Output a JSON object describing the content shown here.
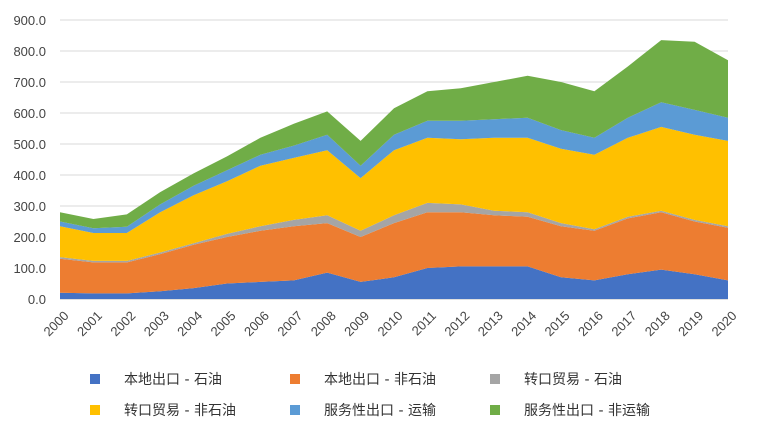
{
  "chart_data": {
    "type": "area",
    "stacked": true,
    "title": "",
    "xlabel": "",
    "ylabel": "",
    "x": [
      "2000",
      "2001",
      "2002",
      "2003",
      "2004",
      "2005",
      "2006",
      "2007",
      "2008",
      "2009",
      "2010",
      "2011",
      "2012",
      "2013",
      "2014",
      "2015",
      "2016",
      "2017",
      "2018",
      "2019",
      "2020"
    ],
    "ylim": [
      0,
      900
    ],
    "yticks": [
      "0.0",
      "100.0",
      "200.0",
      "300.0",
      "400.0",
      "500.0",
      "600.0",
      "700.0",
      "800.0",
      "900.0"
    ],
    "grid": true,
    "legend_position": "bottom",
    "series": [
      {
        "name": "本地出口 - 石油",
        "color": "#4472C4",
        "values": [
          20,
          18,
          18,
          25,
          35,
          50,
          55,
          60,
          85,
          55,
          70,
          100,
          105,
          105,
          105,
          70,
          60,
          80,
          95,
          80,
          60
        ]
      },
      {
        "name": "本地出口 - 非石油",
        "color": "#ED7D31",
        "values": [
          110,
          100,
          100,
          120,
          140,
          150,
          165,
          175,
          160,
          145,
          175,
          180,
          175,
          165,
          160,
          165,
          160,
          180,
          185,
          170,
          170
        ]
      },
      {
        "name": "转口贸易 - 石油",
        "color": "#A5A5A5",
        "values": [
          5,
          5,
          5,
          5,
          5,
          10,
          15,
          20,
          25,
          20,
          25,
          30,
          25,
          15,
          15,
          10,
          5,
          5,
          5,
          5,
          5
        ]
      },
      {
        "name": "转口贸易 - 非石油",
        "color": "#FFC000",
        "values": [
          100,
          90,
          90,
          130,
          155,
          170,
          195,
          200,
          210,
          170,
          210,
          210,
          210,
          235,
          240,
          240,
          240,
          255,
          270,
          275,
          275
        ]
      },
      {
        "name": "服务性出口 - 运输",
        "color": "#5B9BD5",
        "values": [
          15,
          15,
          20,
          25,
          30,
          35,
          35,
          40,
          50,
          40,
          50,
          55,
          60,
          60,
          65,
          60,
          55,
          65,
          80,
          80,
          75
        ]
      },
      {
        "name": "服务性出口 - 非运输",
        "color": "#70AD47",
        "values": [
          30,
          30,
          40,
          40,
          40,
          45,
          55,
          70,
          75,
          80,
          85,
          95,
          105,
          120,
          135,
          155,
          150,
          165,
          200,
          220,
          185
        ]
      }
    ]
  }
}
